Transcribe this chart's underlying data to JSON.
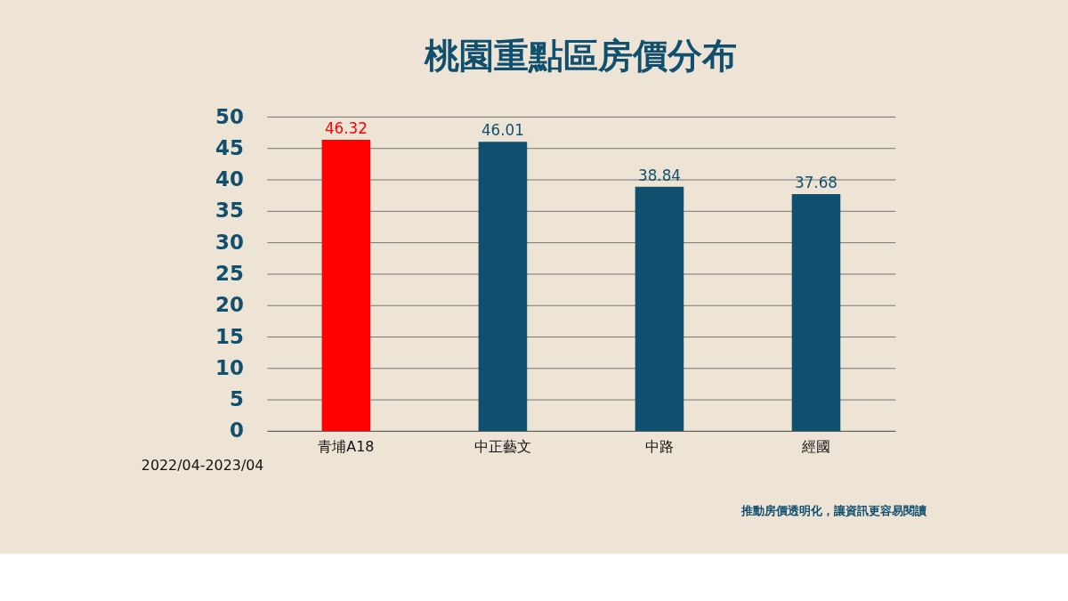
{
  "chart_data": {
    "type": "bar",
    "title": "桃園重點區房價分布",
    "categories": [
      "青埔A18",
      "中正藝文",
      "中路",
      "經國"
    ],
    "values": [
      46.32,
      46.01,
      38.84,
      37.68
    ],
    "colors": [
      "#ff0000",
      "#10506e",
      "#10506e",
      "#10506e"
    ],
    "ylim": [
      0,
      50
    ],
    "yticks": [
      0,
      5,
      10,
      15,
      20,
      25,
      30,
      35,
      40,
      45,
      50
    ],
    "grid": "y",
    "data_labels": true,
    "annotations": [
      "2022/04-2023/04",
      "推動房價透明化，讓資訊更容易閱讀"
    ]
  }
}
